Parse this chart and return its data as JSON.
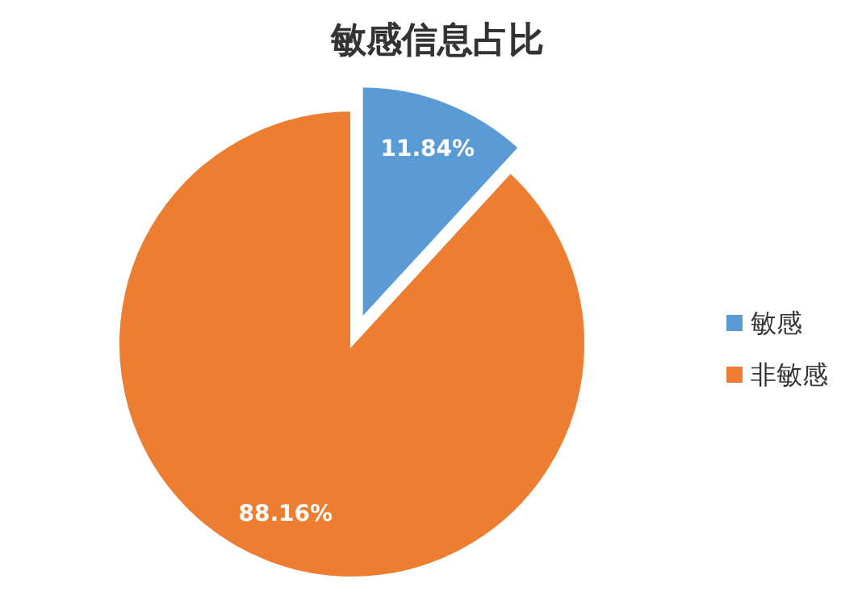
{
  "chart_data": {
    "type": "pie",
    "title": "敏感信息占比",
    "categories": [
      "敏感",
      "非敏感"
    ],
    "values": [
      11.84,
      88.16
    ],
    "value_labels": [
      "11.84%",
      "88.16%"
    ],
    "colors": [
      "#5b9bd5",
      "#ed7d31"
    ],
    "legend": "right"
  }
}
